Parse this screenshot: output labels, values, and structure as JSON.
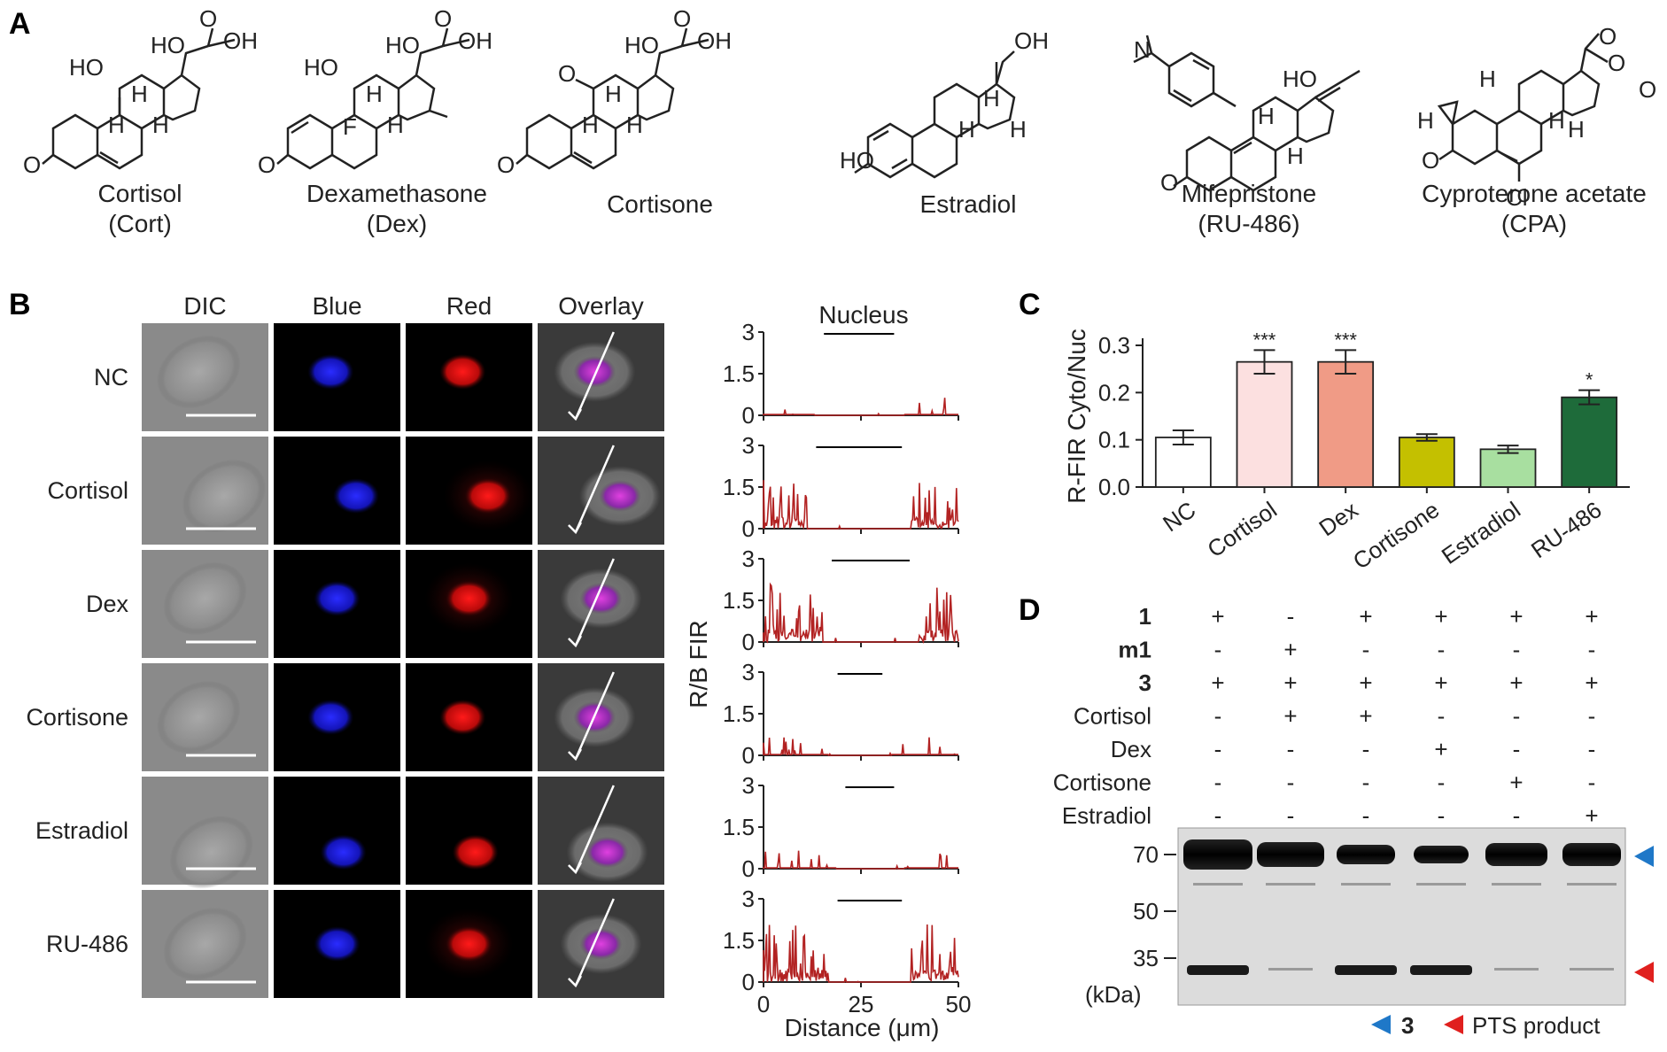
{
  "panels": {
    "a": "A",
    "b": "B",
    "c": "C",
    "d": "D"
  },
  "panel_a": {
    "molecules": [
      {
        "name": "Cortisol",
        "abbr": "(Cort)",
        "atoms": [
          "HO",
          "HO",
          "OH",
          "H",
          "H",
          "H",
          "O",
          "O"
        ]
      },
      {
        "name": "Dexamethasone",
        "abbr": "(Dex)",
        "atoms": [
          "HO",
          "HO",
          "OH",
          "H",
          "H",
          "F",
          "O",
          "O"
        ]
      },
      {
        "name": "Cortisone",
        "abbr": "",
        "atoms": [
          "O",
          "HO",
          "OH",
          "H",
          "H",
          "H",
          "O",
          "O"
        ]
      },
      {
        "name": "Estradiol",
        "abbr": "",
        "atoms": [
          "OH",
          "H",
          "H",
          "H",
          "HO"
        ]
      },
      {
        "name": "Mifepristone",
        "abbr": "(RU-486)",
        "atoms": [
          "N",
          "HO",
          "H",
          "H",
          "O"
        ]
      },
      {
        "name": "Cyproterone acetate",
        "abbr": "(CPA)",
        "atoms": [
          "O",
          "O",
          "O",
          "H",
          "H",
          "H",
          "H",
          "O",
          "Cl"
        ]
      }
    ]
  },
  "panel_b": {
    "columns": [
      "DIC",
      "Blue",
      "Red",
      "Overlay"
    ],
    "rows": [
      "NC",
      "Cortisol",
      "Dex",
      "Cortisone",
      "Estradiol",
      "RU-486"
    ],
    "profile_title": "Nucleus",
    "ylabel": "R/B FIR",
    "xlabel": "Distance (μm)",
    "yticks": [
      "3",
      "1.5",
      "0"
    ],
    "xticks": [
      "0",
      "25",
      "50"
    ]
  },
  "panel_c": {
    "chart_data": {
      "type": "bar",
      "ylabel": "R-FIR Cyto/Nuc",
      "categories": [
        "NC",
        "Cortisol",
        "Dex",
        "Cortisone",
        "Estradiol",
        "RU-486"
      ],
      "values": [
        0.105,
        0.265,
        0.265,
        0.105,
        0.08,
        0.19
      ],
      "errors": [
        0.015,
        0.025,
        0.025,
        0.007,
        0.008,
        0.015
      ],
      "significance": [
        "",
        "***",
        "***",
        "",
        "",
        "*"
      ],
      "colors": [
        "#ffffff",
        "#fce0e0",
        "#f09b86",
        "#c4c000",
        "#a8dfa0",
        "#1e6b3a"
      ],
      "ylim": [
        0,
        0.3
      ],
      "yticks": [
        "0.0",
        "0.1",
        "0.2",
        "0.3"
      ]
    }
  },
  "panel_d": {
    "rows": [
      {
        "label": "1",
        "bold": true,
        "values": [
          "+",
          "-",
          "+",
          "+",
          "+",
          "+"
        ]
      },
      {
        "label": "m1",
        "bold": true,
        "values": [
          "-",
          "+",
          "-",
          "-",
          "-",
          "-"
        ]
      },
      {
        "label": "3",
        "bold": true,
        "values": [
          "+",
          "+",
          "+",
          "+",
          "+",
          "+"
        ]
      },
      {
        "label": "Cortisol",
        "bold": false,
        "values": [
          "-",
          "+",
          "+",
          "-",
          "-",
          "-"
        ]
      },
      {
        "label": "Dex",
        "bold": false,
        "values": [
          "-",
          "-",
          "-",
          "+",
          "-",
          "-"
        ]
      },
      {
        "label": "Cortisone",
        "bold": false,
        "values": [
          "-",
          "-",
          "-",
          "-",
          "+",
          "-"
        ]
      },
      {
        "label": "Estradiol",
        "bold": false,
        "values": [
          "-",
          "-",
          "-",
          "-",
          "-",
          "+"
        ]
      }
    ],
    "markers": [
      "70",
      "50",
      "35"
    ],
    "unit": "(kDa)",
    "legend": {
      "item1": "3",
      "item2": "PTS product"
    },
    "arrow_colors": {
      "blue": "#1f78c8",
      "red": "#e0201e"
    }
  }
}
